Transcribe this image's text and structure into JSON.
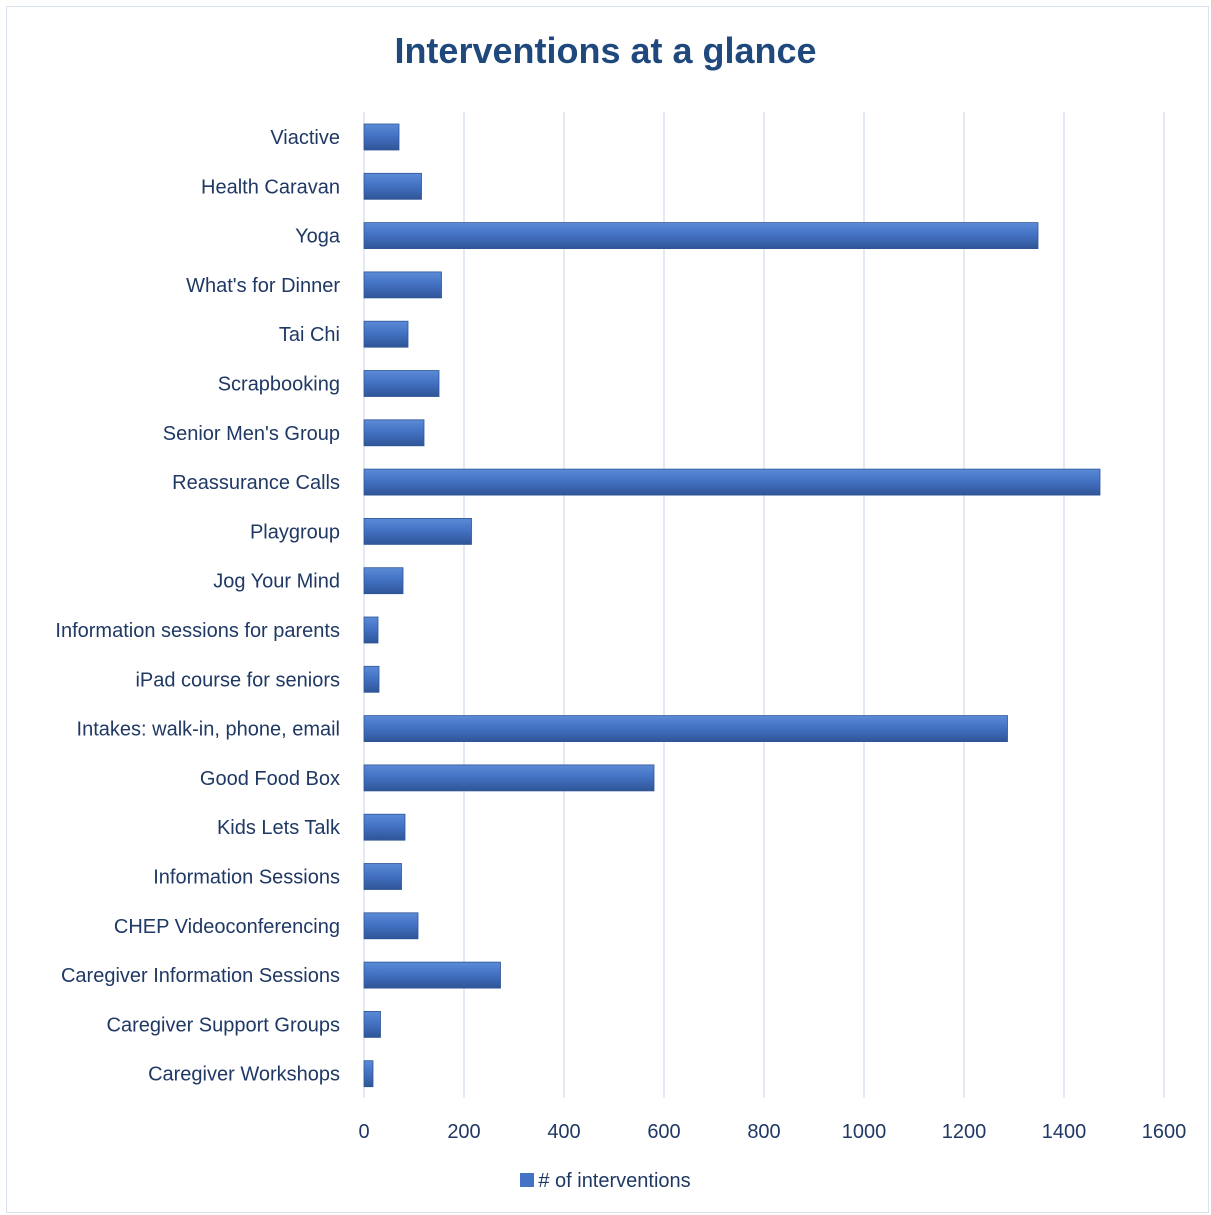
{
  "chart_data": {
    "type": "bar",
    "orientation": "horizontal",
    "title": "Interventions at a glance",
    "categories": [
      "Viactive",
      "Health Caravan",
      "Yoga",
      "What's for Dinner",
      "Tai Chi ",
      "Scrapbooking",
      "Senior Men's Group",
      "Reassurance Calls ",
      "Playgroup",
      "Jog Your Mind",
      "Information sessions for parents",
      "iPad course for seniors",
      "Intakes: walk-in, phone, email",
      "Good Food Box",
      "Kids Lets Talk",
      "Information Sessions",
      "CHEP Videoconferencing",
      "Caregiver Information Sessions",
      "Caregiver Support Groups",
      "Caregiver Workshops"
    ],
    "series": [
      {
        "name": "# of interventions",
        "values": [
          70,
          115,
          1348,
          155,
          88,
          150,
          120,
          1472,
          215,
          78,
          28,
          30,
          1287,
          580,
          82,
          75,
          108,
          273,
          33,
          18
        ]
      }
    ],
    "xlim": [
      0,
      1600
    ],
    "xticks": [
      0,
      200,
      400,
      600,
      800,
      1000,
      1200,
      1400,
      1600
    ],
    "grid": "vertical",
    "legend_position": "bottom",
    "colors": {
      "bar": "#4472c4",
      "bar_dark": "#2f5597",
      "title": "#1f497d",
      "text": "#1f3864",
      "grid": "#c9d6e8"
    }
  }
}
